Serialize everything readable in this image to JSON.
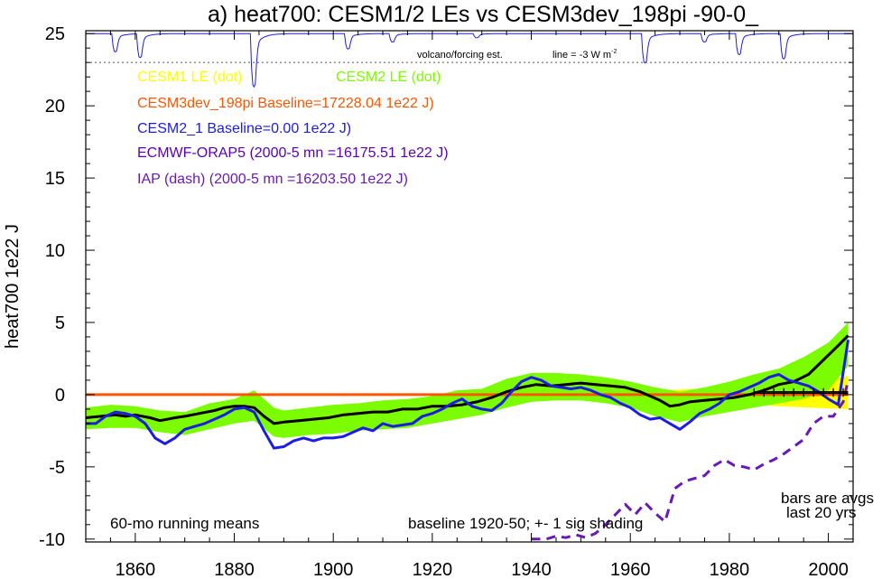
{
  "chart_data": {
    "type": "line",
    "title": "a) heat700: CESM1/2 LEs vs CESM3dev_198pi -90-0_",
    "ylabel": "heat700 1e22 J",
    "xlabel": "",
    "xlim": [
      1850,
      2005
    ],
    "ylim": [
      -10.2,
      25.2
    ],
    "x_ticks": [
      1860,
      1880,
      1900,
      1920,
      1940,
      1960,
      1980,
      2000
    ],
    "y_ticks": [
      -10,
      -5,
      0,
      5,
      10,
      15,
      20,
      25
    ],
    "y_tick_labels": [
      "-10",
      "-5",
      "0",
      "5",
      "10",
      "15",
      "20",
      "25"
    ],
    "grid": false,
    "legend_position": "top-left",
    "volcano_label": "volcano/forcing est.",
    "volcano_line_label": "line = -3 W m",
    "volcano_line_label_sup": "-2",
    "volcano_reference_y": 23,
    "volcano_dips": [
      {
        "year": 1856,
        "depth": 1.3
      },
      {
        "year": 1861,
        "depth": 1.7
      },
      {
        "year": 1884,
        "depth": 3.8
      },
      {
        "year": 1903,
        "depth": 1.1
      },
      {
        "year": 1912,
        "depth": 0.6
      },
      {
        "year": 1929,
        "depth": 0.3
      },
      {
        "year": 1963,
        "depth": 2.1
      },
      {
        "year": 1975,
        "depth": 0.6
      },
      {
        "year": 1982,
        "depth": 1.5
      },
      {
        "year": 1991,
        "depth": 1.8
      }
    ],
    "annotations": [
      "60-mo running means",
      "baseline 1920-50; +- 1 sig shading",
      "bars are avgs",
      "last 20 yrs"
    ],
    "legend": [
      {
        "text": "CESM1 LE (dot)",
        "color": "#ffff00"
      },
      {
        "text": "CESM2 LE (dot)",
        "color": "#7cfc00"
      },
      {
        "text": "CESM3dev_198pi Baseline=17228.04 1e22 J)",
        "color": "#ff5500"
      },
      {
        "text": "CESM2_1 Baseline=0.00 1e22 J)",
        "color": "#1c1ce6"
      },
      {
        "text": "ECMWF-ORAP5 (2000-5 mn =16175.51 1e22 J)",
        "color": "#5a00b4"
      },
      {
        "text": "IAP (dash) (2000-5 mn =16203.50 1e22 J)",
        "color": "#6a1ab4"
      }
    ],
    "bands": [
      {
        "name": "CESM1 LE",
        "color": "#ffff00",
        "x": [
          1850,
          1930,
          1950,
          1970,
          1980,
          1990,
          2000,
          2004
        ],
        "lower": [
          0,
          -0.05,
          -0.15,
          -0.4,
          -0.55,
          -0.8,
          -0.95,
          -1.0
        ],
        "upper": [
          0,
          0.05,
          0.15,
          0.35,
          0.5,
          0.75,
          1.0,
          1.3
        ]
      },
      {
        "name": "CESM2 LE",
        "color": "#7cfc00",
        "x": [
          1850,
          1855,
          1860,
          1865,
          1870,
          1875,
          1880,
          1884,
          1888,
          1890,
          1895,
          1900,
          1905,
          1910,
          1915,
          1920,
          1925,
          1930,
          1935,
          1940,
          1945,
          1950,
          1955,
          1960,
          1965,
          1970,
          1975,
          1980,
          1985,
          1990,
          1995,
          2000,
          2004
        ],
        "lower": [
          -2.4,
          -2.3,
          -2.3,
          -2.6,
          -2.8,
          -2.4,
          -2.0,
          -1.8,
          -2.9,
          -3.0,
          -2.8,
          -2.7,
          -2.5,
          -2.4,
          -2.3,
          -2.0,
          -1.7,
          -1.4,
          -0.9,
          -0.5,
          -0.4,
          -0.4,
          -0.6,
          -0.9,
          -1.5,
          -1.9,
          -1.5,
          -1.2,
          -0.9,
          -0.6,
          -0.3,
          0.3,
          2.0
        ],
        "upper": [
          -0.9,
          -0.7,
          -0.8,
          -1.1,
          -1.2,
          -0.6,
          -0.3,
          0.3,
          -0.9,
          -1.1,
          -0.9,
          -0.7,
          -0.6,
          -0.4,
          -0.3,
          -0.1,
          0.3,
          0.4,
          1.1,
          1.5,
          1.5,
          1.4,
          1.2,
          0.9,
          0.5,
          0.2,
          0.5,
          0.9,
          1.4,
          1.8,
          2.6,
          3.6,
          5.0
        ]
      }
    ],
    "series": [
      {
        "name": "CESM3dev_198pi",
        "color": "#ff5500",
        "width": 3,
        "dash": "",
        "x": [
          1850,
          2004
        ],
        "y": [
          0,
          0
        ]
      },
      {
        "name": "CESM2 LE",
        "color": "#000000",
        "width": 3,
        "dash": "",
        "x": [
          1850,
          1853,
          1856,
          1858,
          1860,
          1863,
          1865,
          1868,
          1870,
          1873,
          1876,
          1878,
          1880,
          1882,
          1884,
          1886,
          1888,
          1890,
          1893,
          1896,
          1899,
          1902,
          1905,
          1908,
          1911,
          1914,
          1917,
          1920,
          1923,
          1926,
          1929,
          1932,
          1935,
          1938,
          1941,
          1944,
          1947,
          1950,
          1953,
          1956,
          1959,
          1962,
          1964,
          1966,
          1968,
          1970,
          1972,
          1975,
          1978,
          1981,
          1984,
          1987,
          1990,
          1993,
          1996,
          1999,
          2002,
          2004
        ],
        "y": [
          -1.6,
          -1.5,
          -1.4,
          -1.5,
          -1.4,
          -1.6,
          -1.8,
          -1.6,
          -1.5,
          -1.3,
          -1.1,
          -0.9,
          -0.8,
          -0.8,
          -0.9,
          -1.5,
          -2.0,
          -1.9,
          -1.8,
          -1.7,
          -1.6,
          -1.4,
          -1.3,
          -1.2,
          -1.2,
          -1.0,
          -1.0,
          -0.8,
          -0.8,
          -0.7,
          -0.5,
          -0.2,
          0.2,
          0.5,
          0.7,
          0.6,
          0.7,
          0.8,
          0.7,
          0.6,
          0.5,
          0.2,
          -0.1,
          -0.4,
          -0.8,
          -0.7,
          -0.5,
          -0.4,
          -0.3,
          -0.2,
          0.0,
          0.3,
          0.7,
          0.9,
          1.4,
          2.4,
          3.4,
          4.1
        ]
      },
      {
        "name": "CESM2_1",
        "color": "#1c1ce6",
        "width": 3,
        "dash": "",
        "x": [
          1850,
          1852,
          1854,
          1856,
          1858,
          1860,
          1862,
          1864,
          1866,
          1868,
          1870,
          1872,
          1874,
          1876,
          1878,
          1880,
          1882,
          1884,
          1886,
          1888,
          1890,
          1892,
          1894,
          1896,
          1898,
          1900,
          1902,
          1904,
          1906,
          1908,
          1910,
          1912,
          1914,
          1916,
          1918,
          1920,
          1922,
          1924,
          1926,
          1928,
          1930,
          1932,
          1934,
          1936,
          1938,
          1940,
          1942,
          1944,
          1946,
          1948,
          1950,
          1952,
          1954,
          1956,
          1958,
          1960,
          1962,
          1964,
          1966,
          1968,
          1970,
          1972,
          1974,
          1976,
          1978,
          1980,
          1982,
          1984,
          1986,
          1988,
          1990,
          1992,
          1994,
          1996,
          1998,
          2000,
          2002,
          2004
        ],
        "y": [
          -2.0,
          -2.0,
          -1.5,
          -1.2,
          -1.3,
          -1.5,
          -2.0,
          -3.0,
          -3.4,
          -3.0,
          -2.4,
          -2.2,
          -2.0,
          -1.7,
          -1.4,
          -1.0,
          -0.9,
          -1.2,
          -2.5,
          -3.7,
          -3.6,
          -3.2,
          -3.0,
          -3.2,
          -3.0,
          -3.0,
          -2.9,
          -2.6,
          -2.3,
          -2.5,
          -2.0,
          -2.2,
          -2.1,
          -2.0,
          -1.5,
          -1.3,
          -1.0,
          -0.6,
          -0.3,
          -0.8,
          -1.0,
          -1.1,
          -0.6,
          0.2,
          0.9,
          1.2,
          1.0,
          0.6,
          0.5,
          0.4,
          0.5,
          0.3,
          0.0,
          -0.2,
          -0.6,
          -0.9,
          -1.4,
          -1.7,
          -1.6,
          -2.0,
          -2.4,
          -1.9,
          -1.3,
          -1.0,
          -0.6,
          0.0,
          0.2,
          0.5,
          0.8,
          1.2,
          1.4,
          1.0,
          0.8,
          0.6,
          0.2,
          -0.3,
          -0.7,
          3.8
        ]
      },
      {
        "name": "IAP",
        "color": "#6a1ab4",
        "width": 3,
        "dash": "10,7",
        "x": [
          1940,
          1943,
          1945,
          1947,
          1949,
          1951,
          1953,
          1955,
          1957,
          1959,
          1961,
          1963,
          1965,
          1967,
          1969,
          1971,
          1973,
          1975,
          1977,
          1979,
          1981,
          1983,
          1985,
          1987,
          1989,
          1991,
          1993,
          1995,
          1997,
          1999,
          2001,
          2003,
          2004
        ],
        "y": [
          -10.0,
          -10.0,
          -9.8,
          -9.9,
          -9.7,
          -9.9,
          -9.6,
          -9.0,
          -8.3,
          -7.6,
          -8.3,
          -7.5,
          -8.2,
          -8.8,
          -6.5,
          -6.0,
          -5.8,
          -5.6,
          -4.9,
          -4.5,
          -4.9,
          -5.0,
          -5.2,
          -4.8,
          -4.5,
          -4.1,
          -3.6,
          -3.1,
          -2.0,
          -1.5,
          -1.5,
          -0.5,
          1.0
        ]
      }
    ],
    "bars": [
      {
        "name": "CESM2_1 avg",
        "color": "#000000",
        "x_range": [
          1985,
          2004
        ],
        "y": 0.1
      },
      {
        "name": "CESM2 LE avg",
        "color": "#000000",
        "x_range": [
          1985,
          2004
        ],
        "y": 0.2
      }
    ]
  }
}
